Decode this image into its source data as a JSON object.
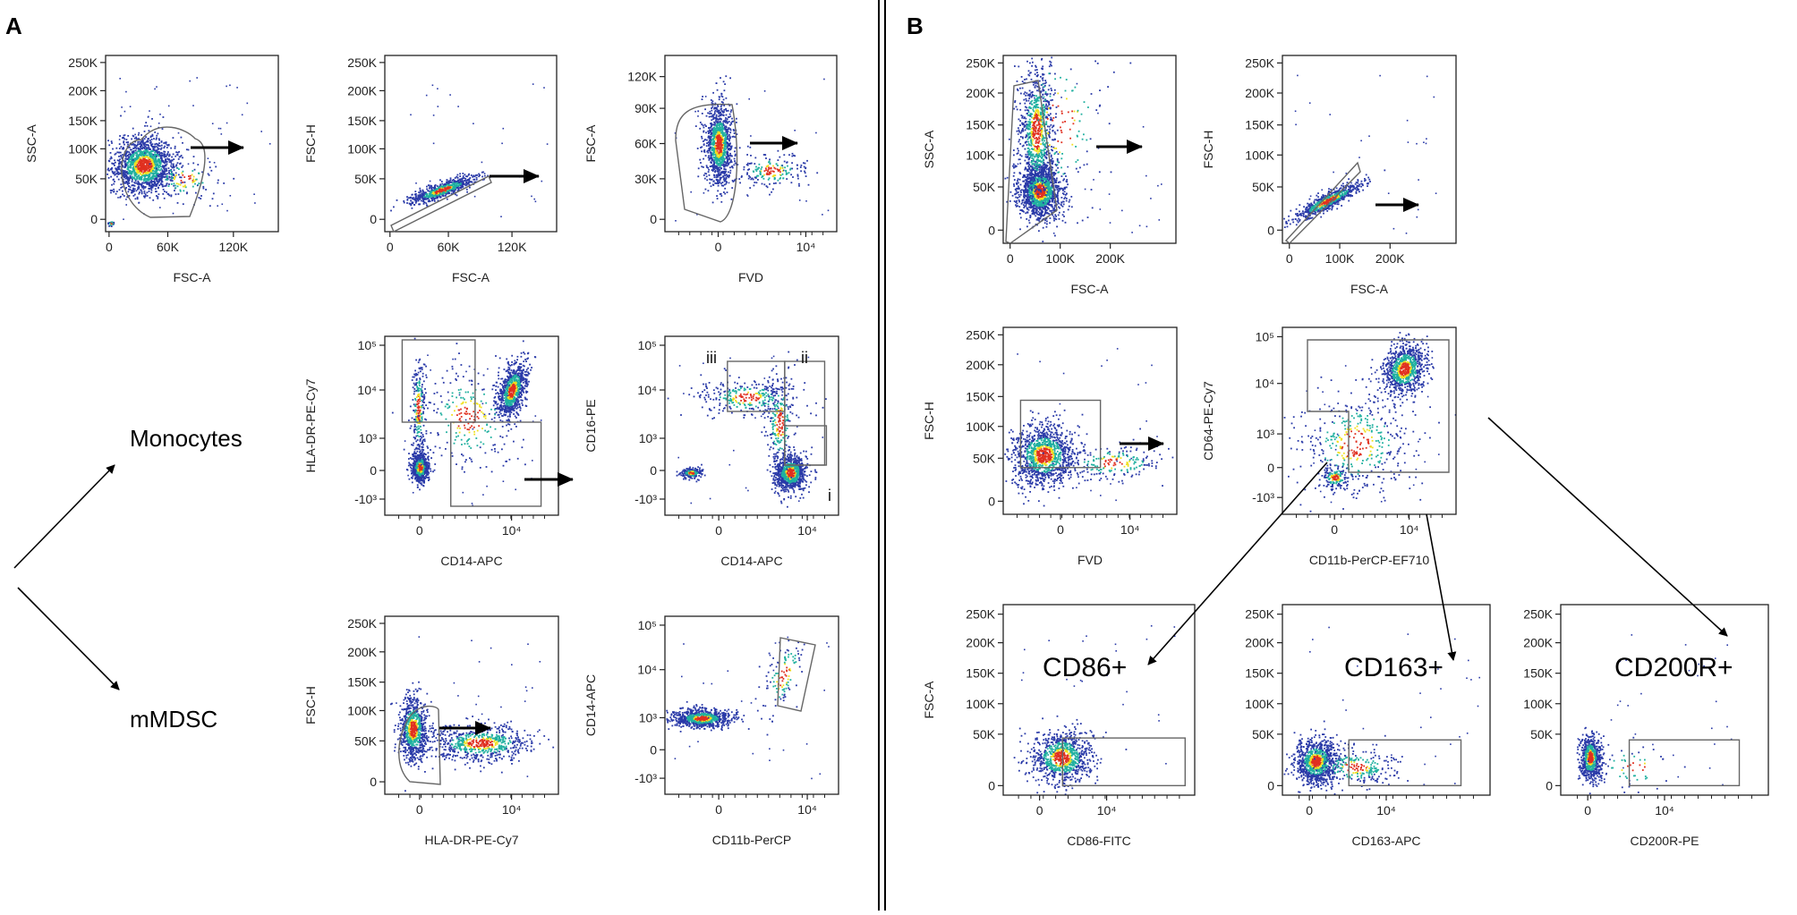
{
  "figure": {
    "panel_a_label": "A",
    "panel_b_label": "B",
    "populations": {
      "monocytes": "Monocytes",
      "mmdsc": "mMDSC"
    },
    "gate_labels": {
      "cd86": "CD86+",
      "cd163": "CD163+",
      "cd200r": "CD200R+"
    },
    "quadrants": {
      "i": "i",
      "ii": "ii",
      "iii": "iii"
    },
    "colors": {
      "ink": "#222222",
      "gate": "#666666",
      "low": "#2a3aa8",
      "mid": "#20b0a0",
      "high": "#f0e020",
      "peak": "#e03020"
    }
  },
  "plots": [
    {
      "id": "a1",
      "xlabel": "FSC-A",
      "ylabel": "SSC-A",
      "xticks": [
        "0",
        "60K",
        "120K"
      ],
      "yticks": [
        "250K",
        "200K",
        "150K",
        "100K",
        "50K",
        "0"
      ]
    },
    {
      "id": "a2",
      "xlabel": "FSC-A",
      "ylabel": "FSC-H",
      "xticks": [
        "0",
        "60K",
        "120K"
      ],
      "yticks": [
        "250K",
        "200K",
        "150K",
        "100K",
        "50K",
        "0"
      ]
    },
    {
      "id": "a3",
      "xlabel": "FVD",
      "ylabel": "FSC-A",
      "xticks": [
        "0",
        "10⁴"
      ],
      "yticks": [
        "120K",
        "90K",
        "60K",
        "30K",
        "0"
      ]
    },
    {
      "id": "a4",
      "xlabel": "CD14-APC",
      "ylabel": "HLA-DR-PE-Cy7",
      "xticks": [
        "0",
        "10⁴"
      ],
      "yticks": [
        "10⁵",
        "10⁴",
        "10³",
        "0",
        "-10³"
      ]
    },
    {
      "id": "a5",
      "xlabel": "CD14-APC",
      "ylabel": "CD16-PE",
      "xticks": [
        "0",
        "10⁴"
      ],
      "yticks": [
        "10⁵",
        "10⁴",
        "10³",
        "0",
        "-10³"
      ]
    },
    {
      "id": "a6",
      "xlabel": "HLA-DR-PE-Cy7",
      "ylabel": "FSC-H",
      "xticks": [
        "0",
        "10⁴"
      ],
      "yticks": [
        "250K",
        "200K",
        "150K",
        "100K",
        "50K",
        "0"
      ]
    },
    {
      "id": "a7",
      "xlabel": "CD11b-PerCP",
      "ylabel": "CD14-APC",
      "xticks": [
        "0",
        "10⁴"
      ],
      "yticks": [
        "10⁵",
        "10⁴",
        "10³",
        "0",
        "-10³"
      ]
    },
    {
      "id": "b1",
      "xlabel": "FSC-A",
      "ylabel": "SSC-A",
      "xticks": [
        "0",
        "100K",
        "200K"
      ],
      "yticks": [
        "250K",
        "200K",
        "150K",
        "100K",
        "50K",
        "0"
      ]
    },
    {
      "id": "b2",
      "xlabel": "FSC-A",
      "ylabel": "FSC-H",
      "xticks": [
        "0",
        "100K",
        "200K"
      ],
      "yticks": [
        "250K",
        "200K",
        "150K",
        "100K",
        "50K",
        "0"
      ]
    },
    {
      "id": "b3",
      "xlabel": "FVD",
      "ylabel": "FSC-H",
      "xticks": [
        "0",
        "10⁴"
      ],
      "yticks": [
        "250K",
        "200K",
        "150K",
        "100K",
        "50K",
        "0"
      ]
    },
    {
      "id": "b4",
      "xlabel": "CD11b-PerCP-EF710",
      "ylabel": "CD64-PE-Cy7",
      "xticks": [
        "0",
        "10⁴"
      ],
      "yticks": [
        "10⁵",
        "10⁴",
        "10³",
        "0",
        "-10³"
      ]
    },
    {
      "id": "b5",
      "xlabel": "CD86-FITC",
      "ylabel": "FSC-A",
      "xticks": [
        "0",
        "10⁴"
      ],
      "yticks": [
        "250K",
        "200K",
        "150K",
        "100K",
        "50K",
        "0"
      ]
    },
    {
      "id": "b6",
      "xlabel": "CD163-APC",
      "ylabel": "",
      "xticks": [
        "0",
        "10⁴"
      ],
      "yticks": [
        "250K",
        "200K",
        "150K",
        "100K",
        "50K",
        "0"
      ]
    },
    {
      "id": "b7",
      "xlabel": "CD200R-PE",
      "ylabel": "",
      "xticks": [
        "0",
        "10⁴"
      ],
      "yticks": [
        "250K",
        "200K",
        "150K",
        "100K",
        "50K",
        "0"
      ]
    }
  ]
}
